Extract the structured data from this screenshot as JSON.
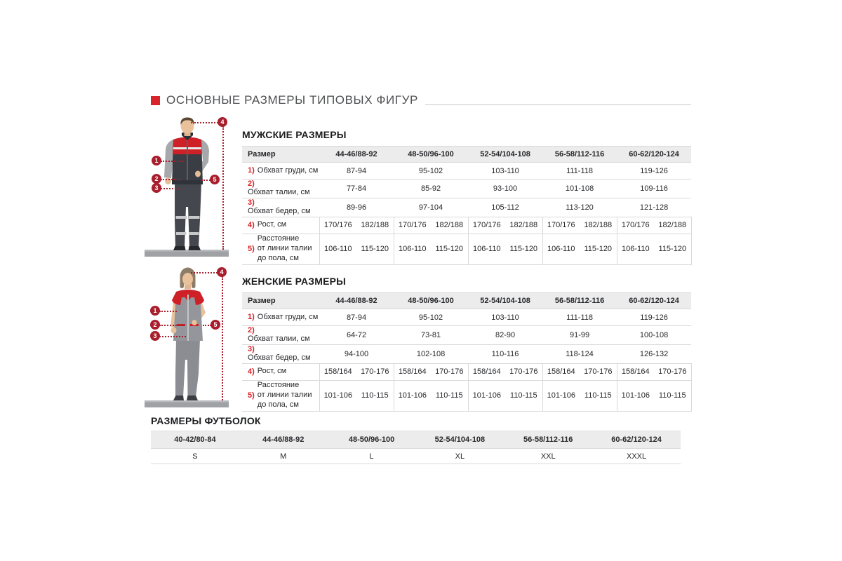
{
  "page": {
    "title": "ОСНОВНЫЕ РАЗМЕРЫ ТИПОВЫХ ФИГУР"
  },
  "colors": {
    "accent_red": "#d9242b",
    "marker_red": "#a81e2d",
    "header_bg": "#ececec",
    "row_border": "#d9d9d9",
    "text": "#26272a",
    "title_gray": "#4f5052"
  },
  "figure_markers": {
    "labels": [
      "1",
      "2",
      "3",
      "4",
      "5"
    ]
  },
  "mens": {
    "heading": "МУЖСКИЕ РАЗМЕРЫ",
    "corner_label": "Размер",
    "sizes": [
      "44-46/88-92",
      "48-50/96-100",
      "52-54/104-108",
      "56-58/112-116",
      "60-62/120-124"
    ],
    "rows": [
      {
        "num": "1)",
        "label": "Обхват груди, см",
        "values": [
          "87-94",
          "95-102",
          "103-110",
          "111-118",
          "119-126"
        ]
      },
      {
        "num": "2)",
        "label": "Обхват талии, см",
        "values": [
          "77-84",
          "85-92",
          "93-100",
          "101-108",
          "109-116"
        ]
      },
      {
        "num": "3)",
        "label": "Обхват бедер, см",
        "values": [
          "89-96",
          "97-104",
          "105-112",
          "113-120",
          "121-128"
        ]
      }
    ],
    "split_rows": [
      {
        "num": "4)",
        "label": "Рост, см",
        "pair": [
          "170/176",
          "182/188"
        ]
      },
      {
        "num": "5)",
        "label": "Расстояние\nот линии талии\nдо пола, см",
        "pair": [
          "106-110",
          "115-120"
        ]
      }
    ]
  },
  "womens": {
    "heading": "ЖЕНСКИЕ РАЗМЕРЫ",
    "corner_label": "Размер",
    "sizes": [
      "44-46/88-92",
      "48-50/96-100",
      "52-54/104-108",
      "56-58/112-116",
      "60-62/120-124"
    ],
    "rows": [
      {
        "num": "1)",
        "label": "Обхват груди, см",
        "values": [
          "87-94",
          "95-102",
          "103-110",
          "111-118",
          "119-126"
        ]
      },
      {
        "num": "2)",
        "label": "Обхват талии, см",
        "values": [
          "64-72",
          "73-81",
          "82-90",
          "91-99",
          "100-108"
        ]
      },
      {
        "num": "3)",
        "label": "Обхват бедер, см",
        "values": [
          "94-100",
          "102-108",
          "110-116",
          "118-124",
          "126-132"
        ]
      }
    ],
    "split_rows": [
      {
        "num": "4)",
        "label": "Рост, см",
        "pair": [
          "158/164",
          "170-176"
        ]
      },
      {
        "num": "5)",
        "label": "Расстояние\nот линии талии\nдо пола, см",
        "pair": [
          "101-106",
          "110-115"
        ]
      }
    ]
  },
  "tshirts": {
    "heading": "РАЗМЕРЫ ФУТБОЛОК",
    "sizes": [
      "40-42/80-84",
      "44-46/88-92",
      "48-50/96-100",
      "52-54/104-108",
      "56-58/112-116",
      "60-62/120-124"
    ],
    "values": [
      "S",
      "M",
      "L",
      "XL",
      "XXL",
      "XXXL"
    ]
  }
}
